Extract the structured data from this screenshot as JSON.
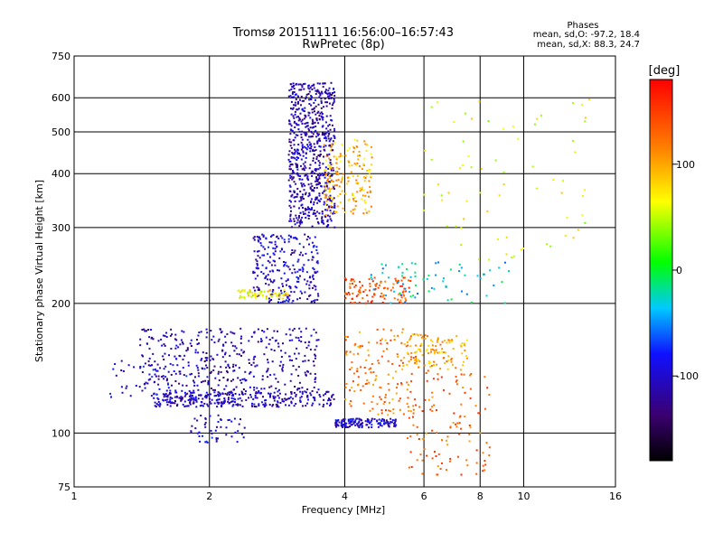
{
  "chart_data": {
    "type": "scatter",
    "title": "Tromsø 20151111 16:56:00–16:57:43",
    "subtitle": "RwPretec (8p)",
    "xlabel": "Frequency [MHz]",
    "ylabel": "Stationary phase Virtual Height [km]",
    "x_scale": "log",
    "y_scale": "log",
    "xlim": [
      1,
      16
    ],
    "ylim": [
      75,
      750
    ],
    "x_ticks": [
      1,
      2,
      4,
      6,
      8,
      10,
      16
    ],
    "x_tick_labels": [
      "1",
      "2",
      "4",
      "6",
      "8",
      "10",
      "16"
    ],
    "y_ticks": [
      75,
      100,
      200,
      300,
      400,
      500,
      600,
      750
    ],
    "y_tick_labels": [
      "75",
      "100",
      "200",
      "300",
      "400",
      "500",
      "600",
      "750"
    ],
    "grid": true,
    "phase_stats": {
      "title": "Phases",
      "o_line": "mean, sd,O: -97.2, 18.4",
      "x_line": "mean, sd,X:  88.3, 24.7"
    },
    "colorbar": {
      "label": "[deg]",
      "min": -180,
      "max": 180,
      "ticks": [
        -100,
        0,
        100
      ],
      "tick_labels": [
        "-100",
        "0",
        "100"
      ]
    },
    "clusters": [
      {
        "x": [
          3.0,
          3.8
        ],
        "y": [
          300,
          650
        ],
        "phase": -110,
        "n": 700
      },
      {
        "x": [
          3.6,
          4.6
        ],
        "y": [
          320,
          480
        ],
        "phase": 95,
        "n": 180
      },
      {
        "x": [
          2.5,
          3.5
        ],
        "y": [
          200,
          290
        ],
        "phase": -100,
        "n": 260
      },
      {
        "x": [
          2.3,
          3.0
        ],
        "y": [
          205,
          215
        ],
        "phase": 70,
        "n": 60
      },
      {
        "x": [
          1.5,
          3.8
        ],
        "y": [
          115,
          125
        ],
        "phase": -105,
        "n": 320
      },
      {
        "x": [
          1.4,
          3.5
        ],
        "y": [
          125,
          175
        ],
        "phase": -110,
        "n": 380
      },
      {
        "x": [
          3.8,
          5.2
        ],
        "y": [
          103,
          108
        ],
        "phase": -100,
        "n": 140
      },
      {
        "x": [
          4.0,
          5.8
        ],
        "y": [
          110,
          175
        ],
        "phase": 120,
        "n": 150
      },
      {
        "x": [
          4.0,
          5.6
        ],
        "y": [
          200,
          230
        ],
        "phase": 140,
        "n": 110
      },
      {
        "x": [
          5.5,
          7.5
        ],
        "y": [
          140,
          170
        ],
        "phase": 100,
        "n": 110
      },
      {
        "x": [
          5.5,
          8.5
        ],
        "y": [
          80,
          140
        ],
        "phase": 130,
        "n": 120
      },
      {
        "x": [
          1.8,
          2.4
        ],
        "y": [
          95,
          110
        ],
        "phase": -100,
        "n": 50
      },
      {
        "x": [
          4.5,
          9.5
        ],
        "y": [
          200,
          250
        ],
        "phase": -30,
        "n": 70
      },
      {
        "x": [
          6.0,
          14.0
        ],
        "y": [
          250,
          600
        ],
        "phase": 60,
        "n": 70
      },
      {
        "x": [
          1.2,
          2.0
        ],
        "y": [
          120,
          150
        ],
        "phase": -95,
        "n": 60
      }
    ]
  }
}
